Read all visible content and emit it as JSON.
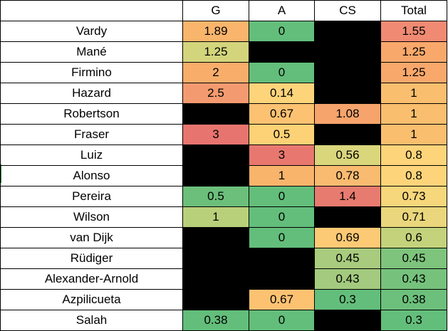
{
  "headers": [
    "",
    "G",
    "A",
    "CS",
    "Total"
  ],
  "rows": [
    {
      "name": "Vardy",
      "cells": [
        {
          "v": "1.89",
          "bg": "#f9b56b"
        },
        {
          "v": "0",
          "bg": "#63be7b"
        },
        {
          "v": "",
          "bg": "#000000"
        },
        {
          "v": "1.55",
          "bg": "#f08a73"
        }
      ]
    },
    {
      "name": "Mané",
      "cells": [
        {
          "v": "1.25",
          "bg": "#d3d57c"
        },
        {
          "v": "",
          "bg": "#000000"
        },
        {
          "v": "",
          "bg": "#000000"
        },
        {
          "v": "1.25",
          "bg": "#f9a86b"
        }
      ]
    },
    {
      "name": "Firmino",
      "cells": [
        {
          "v": "2",
          "bg": "#f9ad6b"
        },
        {
          "v": "0",
          "bg": "#63be7b"
        },
        {
          "v": "",
          "bg": "#000000"
        },
        {
          "v": "1.25",
          "bg": "#f9a86b"
        }
      ]
    },
    {
      "name": "Hazard",
      "cells": [
        {
          "v": "2.5",
          "bg": "#f49a70"
        },
        {
          "v": "0.14",
          "bg": "#fdd47a"
        },
        {
          "v": "",
          "bg": "#000000"
        },
        {
          "v": "1",
          "bg": "#f9be6e"
        }
      ]
    },
    {
      "name": "Robertson",
      "cells": [
        {
          "v": "",
          "bg": "#000000"
        },
        {
          "v": "0.67",
          "bg": "#fcc272"
        },
        {
          "v": "1.08",
          "bg": "#f7a46c"
        },
        {
          "v": "1",
          "bg": "#f9be6e"
        }
      ]
    },
    {
      "name": "Fraser",
      "cells": [
        {
          "v": "3",
          "bg": "#e8746f"
        },
        {
          "v": "0.5",
          "bg": "#fdd276"
        },
        {
          "v": "",
          "bg": "#000000"
        },
        {
          "v": "1",
          "bg": "#f9be6e"
        }
      ]
    },
    {
      "name": "Luiz",
      "cells": [
        {
          "v": "",
          "bg": "#000000"
        },
        {
          "v": "3",
          "bg": "#e8786f"
        },
        {
          "v": "0.56",
          "bg": "#dad67c"
        },
        {
          "v": "0.8",
          "bg": "#fdd47a"
        }
      ]
    },
    {
      "name": "Alonso",
      "cells": [
        {
          "v": "",
          "bg": "#000000"
        },
        {
          "v": "1",
          "bg": "#f9b46c"
        },
        {
          "v": "0.78",
          "bg": "#f9bb70"
        },
        {
          "v": "0.8",
          "bg": "#fdd47a"
        }
      ]
    },
    {
      "name": "Pereira",
      "cells": [
        {
          "v": "0.5",
          "bg": "#6bbf7a"
        },
        {
          "v": "0",
          "bg": "#63be7b"
        },
        {
          "v": "1.4",
          "bg": "#e87b6f"
        },
        {
          "v": "0.73",
          "bg": "#f6d77b"
        }
      ]
    },
    {
      "name": "Wilson",
      "cells": [
        {
          "v": "1",
          "bg": "#b9d07b"
        },
        {
          "v": "0",
          "bg": "#63be7b"
        },
        {
          "v": "",
          "bg": "#000000"
        },
        {
          "v": "0.71",
          "bg": "#ead67c"
        }
      ]
    },
    {
      "name": "van Dijk",
      "cells": [
        {
          "v": "",
          "bg": "#000000"
        },
        {
          "v": "0",
          "bg": "#63be7b"
        },
        {
          "v": "0.69",
          "bg": "#fcc975"
        },
        {
          "v": "0.6",
          "bg": "#c3d27b"
        }
      ]
    },
    {
      "name": "Rüdiger",
      "cells": [
        {
          "v": "",
          "bg": "#000000"
        },
        {
          "v": "",
          "bg": "#000000"
        },
        {
          "v": "0.45",
          "bg": "#a8cb7e"
        },
        {
          "v": "0.45",
          "bg": "#7ec47c"
        }
      ]
    },
    {
      "name": "Alexander-Arnold",
      "cells": [
        {
          "v": "",
          "bg": "#000000"
        },
        {
          "v": "",
          "bg": "#000000"
        },
        {
          "v": "0.43",
          "bg": "#a3ca7e"
        },
        {
          "v": "0.43",
          "bg": "#76c27c"
        }
      ]
    },
    {
      "name": "Azpilicueta",
      "cells": [
        {
          "v": "",
          "bg": "#000000"
        },
        {
          "v": "0.67",
          "bg": "#fcc272"
        },
        {
          "v": "0.3",
          "bg": "#63be7b"
        },
        {
          "v": "0.38",
          "bg": "#6cc07b"
        }
      ]
    },
    {
      "name": "Salah",
      "cells": [
        {
          "v": "0.38",
          "bg": "#63be7b"
        },
        {
          "v": "0",
          "bg": "#63be7b"
        },
        {
          "v": "",
          "bg": "#000000"
        },
        {
          "v": "0.3",
          "bg": "#63be7b"
        }
      ]
    }
  ]
}
